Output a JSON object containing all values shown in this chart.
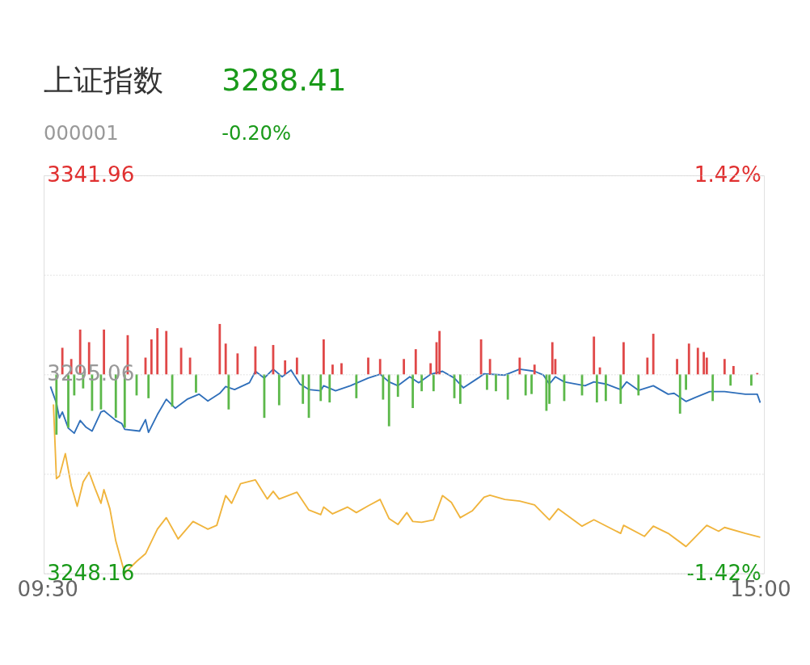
{
  "chart_data": {
    "type": "line",
    "title": "上证指数",
    "subtitle": "000001",
    "annotations": [
      "3288.41",
      "-0.20%"
    ],
    "categories": [
      "09:30",
      null,
      null,
      null,
      null,
      null,
      null,
      null,
      null,
      null,
      null,
      null,
      null,
      null,
      null,
      null,
      null,
      null,
      null,
      null,
      null,
      null,
      null,
      null,
      null,
      null,
      null,
      null,
      null,
      null,
      null,
      null,
      null,
      null,
      null,
      null,
      null,
      null,
      null,
      null,
      null,
      null,
      null,
      null,
      null,
      null,
      null,
      null,
      null,
      null,
      null,
      null,
      null,
      null,
      null,
      null,
      null,
      null,
      null,
      null,
      null,
      null,
      null,
      null,
      null,
      null,
      null,
      null,
      null,
      null,
      null,
      null,
      null,
      null,
      null,
      null,
      null,
      null,
      null,
      null,
      null,
      null,
      null,
      null,
      null,
      null,
      null,
      null,
      null,
      null,
      null,
      null,
      null,
      null,
      null,
      null,
      null,
      null,
      null,
      null,
      null,
      null,
      null,
      null,
      null,
      null,
      null,
      null,
      null,
      null,
      null,
      null,
      null,
      null,
      null,
      null,
      null,
      null,
      null,
      null,
      null,
      null,
      null,
      null,
      null,
      null,
      null,
      null,
      null,
      null,
      null,
      null,
      null,
      null,
      null,
      null,
      null,
      null,
      null,
      null,
      null,
      null,
      null,
      null,
      null,
      null,
      null,
      null,
      null,
      null,
      null,
      null,
      null,
      null,
      null,
      null,
      null,
      null,
      null,
      null,
      null,
      null,
      null,
      null,
      null,
      null,
      null,
      null,
      null,
      null,
      null,
      null,
      null,
      null,
      null,
      null,
      null,
      null,
      null,
      null,
      null,
      null,
      null,
      null,
      null,
      null,
      null,
      null,
      null,
      null,
      null,
      null,
      null,
      null,
      null,
      null,
      null,
      null,
      null,
      null,
      null,
      null,
      null,
      null,
      null,
      null,
      null,
      null,
      null,
      null,
      null,
      null,
      null,
      null,
      null,
      null,
      null,
      null,
      null,
      null,
      null,
      null,
      null,
      null,
      null,
      null,
      null,
      null,
      null,
      null,
      null,
      null,
      null,
      null,
      null,
      null,
      null,
      null,
      null,
      null,
      "15:00"
    ],
    "ylim": [
      3248.16,
      3341.96
    ],
    "yticks": [
      3248.16,
      {
        "value": 3271.61,
        "label": null
      },
      3295.06,
      {
        "value": 3318.51,
        "label": null
      },
      3341.96
    ],
    "y2lim": [
      -1.42,
      1.42
    ],
    "y2ticks": [
      {
        "value": -1.42,
        "label": "-1.42%"
      },
      {
        "value": 1.42,
        "label": "1.42%"
      }
    ],
    "grid": "y",
    "series": [
      {
        "type": "bar",
        "axis": "y2",
        "color": "#e04848",
        "values": [
          null,
          null,
          null,
          null,
          null,
          0.19,
          null,
          null,
          0.11,
          null,
          null,
          0.32,
          null,
          null,
          0.23,
          null,
          null,
          null,
          null,
          0.32,
          null,
          null,
          null,
          null,
          null,
          null,
          null,
          0.28,
          null,
          null,
          null,
          null,
          null,
          0.12,
          null,
          0.25,
          null,
          0.33,
          null,
          null,
          0.31,
          null,
          null,
          null,
          null,
          0.19,
          null,
          null,
          0.12,
          null,
          null,
          null,
          null,
          null,
          null,
          null,
          null,
          null,
          0.36,
          null,
          0.22,
          null,
          null,
          null,
          0.15,
          null,
          null,
          null,
          null,
          null,
          0.2,
          null,
          null,
          null,
          null,
          null,
          0.21,
          null,
          null,
          null,
          0.1,
          null,
          null,
          null,
          0.12,
          null,
          null,
          null,
          null,
          null,
          null,
          null,
          null,
          0.25,
          null,
          null,
          0.07,
          null,
          null,
          0.08,
          null,
          null,
          null,
          null,
          null,
          null,
          null,
          null,
          0.12,
          null,
          null,
          null,
          0.11,
          null,
          null,
          null,
          null,
          null,
          null,
          null,
          0.11,
          null,
          null,
          null,
          0.18,
          null,
          null,
          null,
          null,
          0.08,
          null,
          0.23,
          0.31,
          null,
          null,
          null,
          null,
          null,
          null,
          null,
          null,
          null,
          null,
          null,
          null,
          null,
          0.25,
          null,
          null,
          0.11,
          null,
          null,
          null,
          null,
          null,
          null,
          null,
          null,
          null,
          0.12,
          null,
          null,
          null,
          null,
          0.07,
          null,
          null,
          null,
          null,
          null,
          0.23,
          0.11,
          null,
          null,
          null,
          null,
          null,
          null,
          null,
          null,
          null,
          null,
          null,
          null,
          0.27,
          null,
          0.05,
          null,
          null,
          null,
          null,
          null,
          null,
          null,
          0.23,
          null,
          null,
          null,
          null,
          null,
          null,
          null,
          0.12,
          null,
          0.29,
          null,
          null,
          null,
          null,
          null,
          null,
          null,
          0.11,
          null,
          null,
          null,
          0.22,
          null,
          null,
          0.19,
          null,
          0.16,
          0.12,
          null,
          null,
          null,
          null,
          null,
          0.11,
          null,
          null,
          0.06,
          null,
          null,
          null,
          null,
          null,
          null,
          null,
          0.01,
          null
        ]
      },
      {
        "type": "bar",
        "axis": "y2",
        "color": "#5cb84a",
        "values": [
          null,
          null,
          null,
          -0.43,
          null,
          null,
          null,
          -0.38,
          null,
          -0.15,
          null,
          null,
          -0.1,
          null,
          null,
          -0.26,
          null,
          null,
          -0.25,
          null,
          null,
          null,
          null,
          -0.31,
          null,
          null,
          -0.38,
          null,
          null,
          null,
          -0.15,
          null,
          null,
          null,
          -0.17,
          null,
          null,
          null,
          null,
          null,
          null,
          null,
          -0.23,
          null,
          null,
          null,
          null,
          null,
          null,
          null,
          -0.13,
          null,
          null,
          null,
          null,
          null,
          null,
          null,
          null,
          null,
          null,
          -0.25,
          null,
          null,
          null,
          null,
          null,
          null,
          null,
          null,
          null,
          null,
          null,
          -0.31,
          null,
          null,
          null,
          null,
          -0.22,
          null,
          null,
          null,
          null,
          null,
          null,
          null,
          -0.21,
          null,
          -0.31,
          null,
          null,
          null,
          -0.19,
          null,
          null,
          -0.2,
          null,
          null,
          null,
          null,
          null,
          null,
          null,
          null,
          -0.17,
          null,
          null,
          null,
          null,
          null,
          null,
          null,
          null,
          -0.18,
          null,
          -0.37,
          null,
          null,
          -0.16,
          null,
          null,
          null,
          null,
          -0.24,
          null,
          null,
          -0.12,
          null,
          null,
          null,
          -0.12,
          null,
          null,
          null,
          null,
          null,
          null,
          -0.17,
          null,
          -0.21,
          null,
          null,
          null,
          null,
          null,
          null,
          null,
          null,
          -0.11,
          null,
          null,
          -0.12,
          null,
          null,
          null,
          -0.18,
          null,
          null,
          null,
          null,
          null,
          -0.15,
          null,
          -0.14,
          null,
          null,
          null,
          null,
          -0.26,
          -0.21,
          null,
          null,
          null,
          null,
          -0.19,
          null,
          null,
          null,
          null,
          null,
          -0.15,
          null,
          null,
          null,
          null,
          -0.2,
          null,
          null,
          -0.19,
          null,
          null,
          null,
          null,
          -0.21,
          null,
          null,
          null,
          null,
          null,
          -0.15,
          null,
          null,
          null,
          null,
          null,
          null,
          null,
          null,
          null,
          null,
          null,
          null,
          null,
          -0.28,
          null,
          -0.11,
          null,
          null,
          null,
          null,
          null,
          null,
          null,
          null,
          -0.19,
          null,
          null,
          null,
          null,
          null,
          -0.08,
          null,
          null,
          null,
          null,
          null,
          null,
          -0.08,
          null,
          null,
          null
        ]
      },
      {
        "color": "#f0b43c",
        "values": [
          null,
          null,
          3288.0,
          3270.5,
          3271.1,
          null,
          3276.4,
          null,
          3268.8,
          null,
          3264.0,
          null,
          3269.7,
          null,
          3272.0,
          null,
          3268.2,
          null,
          3264.7,
          3267.9,
          null,
          3263.4,
          null,
          3255.8,
          null,
          null,
          3248.2,
          null,
          null,
          null,
          3251.0,
          null,
          null,
          3252.8,
          null,
          null,
          null,
          3258.6,
          null,
          null,
          3261.3,
          null,
          null,
          null,
          3256.3,
          null,
          null,
          null,
          null,
          3260.4,
          null,
          null,
          null,
          null,
          3258.6,
          null,
          null,
          3259.5,
          null,
          null,
          3266.5,
          null,
          3264.7,
          null,
          null,
          3269.3,
          null,
          null,
          null,
          null,
          3270.2,
          null,
          null,
          null,
          3265.7,
          null,
          3267.5,
          null,
          3265.7,
          null,
          null,
          null,
          null,
          null,
          3267.3,
          null,
          null,
          null,
          3263.1,
          null,
          null,
          null,
          3262.0,
          3263.8,
          null,
          null,
          3262.2,
          null,
          null,
          null,
          null,
          3263.8,
          null,
          null,
          3262.5,
          null,
          null,
          null,
          3264.1,
          null,
          null,
          null,
          3265.6,
          null,
          null,
          3261.1,
          null,
          null,
          3259.7,
          null,
          null,
          3262.5,
          null,
          3260.4,
          null,
          null,
          3260.2,
          null,
          null,
          null,
          3260.8,
          null,
          null,
          3266.5,
          null,
          null,
          3264.9,
          null,
          null,
          3261.3,
          null,
          null,
          null,
          3262.9,
          null,
          null,
          null,
          3266.1,
          null,
          3266.6,
          null,
          null,
          null,
          null,
          3265.6,
          null,
          null,
          null,
          null,
          3265.2,
          null,
          null,
          null,
          null,
          3264.3,
          null,
          null,
          null,
          null,
          3260.8,
          null,
          null,
          3263.4,
          null,
          null,
          null,
          null,
          null,
          null,
          null,
          3259.3,
          null,
          null,
          null,
          3260.8,
          null,
          null,
          null,
          null,
          null,
          null,
          null,
          null,
          3257.6,
          3259.5,
          null,
          null,
          null,
          null,
          null,
          null,
          3256.9,
          null,
          null,
          3259.3,
          null,
          null,
          null,
          null,
          3257.6,
          null,
          null,
          null,
          null,
          null,
          3254.5,
          null,
          null,
          null,
          null,
          null,
          null,
          3259.5,
          null,
          null,
          null,
          3258.1,
          null,
          3259.0,
          null,
          null,
          null,
          null,
          null,
          null,
          3257.6,
          null,
          null,
          null,
          null,
          3256.7
        ]
      },
      {
        "color": "#2f6fba",
        "values": [
          null,
          3292.2,
          null,
          3288.3,
          3284.8,
          3286.2,
          null,
          3282.4,
          null,
          3281.2,
          null,
          3284.2,
          null,
          3282.6,
          null,
          3281.7,
          null,
          null,
          3286.2,
          3286.5,
          null,
          null,
          null,
          3284.2,
          null,
          3283.5,
          3282.1,
          null,
          null,
          null,
          null,
          3281.7,
          null,
          3284.4,
          3281.4,
          null,
          null,
          3285.6,
          null,
          null,
          3289.2,
          null,
          null,
          3287.1,
          null,
          null,
          null,
          3289.2,
          null,
          null,
          null,
          3290.4,
          null,
          null,
          3288.8,
          null,
          null,
          null,
          3290.6,
          null,
          3292.2,
          null,
          null,
          3291.5,
          null,
          null,
          null,
          null,
          3293.1,
          null,
          3295.8,
          null,
          null,
          3294.2,
          null,
          null,
          3296.3,
          null,
          null,
          3294.5,
          null,
          null,
          3296.1,
          null,
          null,
          3292.8,
          null,
          null,
          3291.5,
          null,
          null,
          null,
          3291.2,
          3292.4,
          null,
          null,
          null,
          3291.2,
          null,
          null,
          null,
          null,
          3292.4,
          null,
          null,
          null,
          null,
          null,
          3294.2,
          null,
          null,
          null,
          3295.1,
          null,
          null,
          3293.3,
          null,
          null,
          3292.4,
          null,
          null,
          null,
          3294.5,
          null,
          null,
          3293.1,
          null,
          null,
          null,
          3295.1,
          null,
          null,
          null,
          3295.8,
          null,
          null,
          null,
          3294.2,
          null,
          null,
          3291.9,
          null,
          null,
          null,
          null,
          3294.2,
          null,
          3295.2,
          null,
          null,
          null,
          null,
          null,
          null,
          3294.9,
          null,
          null,
          null,
          null,
          3296.3,
          null,
          null,
          null,
          null,
          3295.8,
          null,
          null,
          3294.9,
          null,
          3292.8,
          null,
          3294.5,
          null,
          null,
          3293.3,
          null,
          null,
          null,
          null,
          null,
          null,
          3292.4,
          null,
          null,
          3293.3,
          null,
          null,
          null,
          3292.8,
          null,
          null,
          null,
          null,
          3291.5,
          null,
          3293.3,
          null,
          null,
          null,
          3291.3,
          null,
          null,
          null,
          null,
          3292.4,
          null,
          null,
          null,
          null,
          3290.4,
          null,
          3290.6,
          null,
          null,
          null,
          3288.7,
          null,
          null,
          3289.6,
          null,
          null,
          null,
          null,
          3291.0,
          null,
          null,
          null,
          null,
          3291.0,
          null,
          null,
          null,
          null,
          null,
          null,
          3290.4,
          null,
          null,
          null,
          3290.4,
          3288.4
        ]
      }
    ]
  }
}
